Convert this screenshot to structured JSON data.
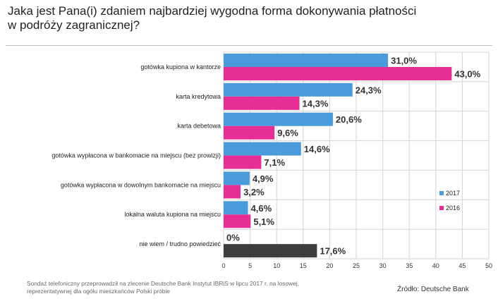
{
  "title_lines": [
    "Jaka jest Pana(i) zdaniem najbardziej wygodna forma dokonywania płatności",
    "w podróży zagranicznej?"
  ],
  "footnote_lines": [
    "Sondaż telefoniczny przeprowadził na zlecenie Deutsche Bank  Instytut IBRiS w lipcu 2017 r. na losowej,",
    "reprezentatywnej dla  ogółu mieszkańców Polski próbie"
  ],
  "source": "Źródło: Deutsche Bank",
  "colors": {
    "s2017": "#4a9bd9",
    "s2016": "#e62e96",
    "other": "#3d3d3d",
    "grid": "#d4d4d4"
  },
  "chart_data": {
    "type": "bar",
    "orientation": "horizontal",
    "categories": [
      "gotówka kupiona w kantorze",
      "karta kredytowa",
      "karta debetowa",
      "gotówka wypłacona w bankomacie na miejscu (bez prowizji)",
      "gotówka wypłacona w dowolnym bankomacie na miejscu",
      "lokalna waluta kupiona na miejscu",
      "nie wiem / trudno powiedzieć"
    ],
    "series": [
      {
        "name": "2017",
        "values": [
          31.0,
          24.3,
          20.6,
          14.6,
          4.9,
          4.6,
          0
        ],
        "labels": [
          "31,0%",
          "24,3%",
          "20,6%",
          "14,6%",
          "4,9%",
          "4,6%",
          "0%"
        ]
      },
      {
        "name": "2016",
        "values": [
          43.0,
          14.3,
          9.6,
          7.1,
          3.2,
          5.1,
          17.6
        ],
        "labels": [
          "43,0%",
          "14,3%",
          "9,6%",
          "7,1%",
          "3,2%",
          "5,1%",
          "17,6%"
        ]
      }
    ],
    "xlim": [
      0,
      50
    ],
    "xticks": [
      "0",
      "5",
      "10",
      "15",
      "20",
      "25",
      "30",
      "35",
      "40",
      "45",
      "50"
    ],
    "grid": true,
    "legend_position": "right"
  }
}
